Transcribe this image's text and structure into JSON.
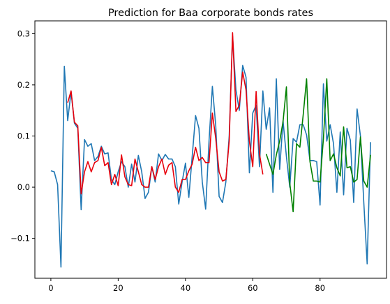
{
  "chart_data": {
    "type": "line",
    "title": "Prediction for Baa corporate bonds rates",
    "xlabel": "",
    "ylabel": "",
    "xlim": [
      -4.75,
      99.75
    ],
    "ylim": [
      -0.178,
      0.325
    ],
    "xticks": [
      0,
      20,
      40,
      60,
      80
    ],
    "yticks": [
      -0.1,
      0.0,
      0.1,
      0.2,
      0.3
    ],
    "ytick_labels": [
      "−0.1",
      "0.0",
      "0.1",
      "0.2",
      "0.3"
    ],
    "grid": false,
    "legend": null,
    "series": [
      {
        "color": "#1f77b4",
        "x": [
          0,
          1,
          2,
          3,
          4,
          5,
          6,
          7,
          8,
          9,
          10,
          11,
          12,
          13,
          14,
          15,
          16,
          17,
          18,
          19,
          20,
          21,
          22,
          23,
          24,
          25,
          26,
          27,
          28,
          29,
          30,
          31,
          32,
          33,
          34,
          35,
          36,
          37,
          38,
          39,
          40,
          41,
          42,
          43,
          44,
          45,
          46,
          47,
          48,
          49,
          50,
          51,
          52,
          53,
          54,
          55,
          56,
          57,
          58,
          59,
          60,
          61,
          62,
          63,
          64,
          65,
          66,
          67,
          68,
          69,
          70,
          71,
          72,
          73,
          74,
          75,
          76,
          77,
          78,
          79,
          80,
          81,
          82,
          83,
          84,
          85,
          86,
          87,
          88,
          89,
          90,
          91,
          92,
          93,
          94,
          95
        ],
        "y": [
          0.032,
          0.03,
          0.005,
          -0.156,
          0.236,
          0.13,
          0.187,
          0.125,
          0.115,
          -0.044,
          0.093,
          0.08,
          0.085,
          0.052,
          0.06,
          0.08,
          0.065,
          0.067,
          0.015,
          0.005,
          0.03,
          0.05,
          0.04,
          0.0,
          0.045,
          0.01,
          0.062,
          0.03,
          -0.022,
          -0.01,
          0.04,
          0.01,
          0.065,
          0.052,
          0.064,
          0.055,
          0.055,
          0.04,
          -0.033,
          0.01,
          0.047,
          -0.02,
          0.06,
          0.14,
          0.115,
          0.01,
          -0.043,
          0.09,
          0.197,
          0.12,
          -0.018,
          -0.03,
          0.01,
          0.1,
          0.295,
          0.19,
          0.15,
          0.238,
          0.215,
          0.028,
          0.145,
          0.16,
          0.04,
          0.188,
          0.113,
          0.155,
          -0.01,
          0.212,
          0.035,
          0.13,
          0.06,
          0.0,
          0.095,
          0.088,
          0.122,
          0.122,
          0.102,
          0.052,
          0.052,
          0.05,
          -0.035,
          0.202,
          0.09,
          0.122,
          0.085,
          -0.01,
          0.108,
          -0.015,
          0.115,
          0.092,
          -0.03,
          0.153,
          0.1,
          -0.03,
          -0.15,
          0.088
        ]
      },
      {
        "color": "#e8000b",
        "x": [
          5,
          6,
          7,
          8,
          9,
          10,
          11,
          12,
          13,
          14,
          15,
          16,
          17,
          18,
          19,
          20,
          21,
          22,
          23,
          24,
          25,
          26,
          27,
          28,
          29,
          30,
          31,
          32,
          33,
          34,
          35,
          36,
          37,
          38,
          39,
          40,
          41,
          42,
          43,
          44,
          45,
          46,
          47,
          48,
          49,
          50,
          51,
          52,
          53,
          54,
          55,
          56,
          57,
          58,
          59,
          60,
          61,
          62,
          63
        ],
        "y": [
          0.165,
          0.188,
          0.127,
          0.12,
          -0.013,
          0.03,
          0.05,
          0.03,
          0.048,
          0.052,
          0.078,
          0.042,
          0.048,
          0.005,
          0.025,
          0.003,
          0.063,
          0.02,
          0.005,
          0.003,
          0.055,
          0.03,
          0.005,
          0.0,
          0.0,
          0.04,
          0.015,
          0.04,
          0.055,
          0.025,
          0.043,
          0.048,
          0.0,
          -0.01,
          0.015,
          0.015,
          0.032,
          0.045,
          0.078,
          0.052,
          0.058,
          0.048,
          0.048,
          0.145,
          0.095,
          0.03,
          0.012,
          0.015,
          0.09,
          0.302,
          0.148,
          0.16,
          0.225,
          0.19,
          0.09,
          0.04,
          0.187,
          0.065,
          0.025
        ]
      },
      {
        "color": "#008000",
        "x": [
          64,
          65,
          66,
          67,
          68,
          69,
          70,
          71,
          72,
          73,
          74,
          75,
          76,
          77,
          78,
          79,
          80,
          81,
          82,
          83,
          84,
          85,
          86,
          87,
          88,
          89,
          90,
          91,
          92,
          93,
          94,
          95
        ],
        "y": [
          0.065,
          0.045,
          0.025,
          0.063,
          0.09,
          0.128,
          0.196,
          0.008,
          -0.048,
          0.085,
          0.078,
          0.142,
          0.212,
          0.05,
          0.012,
          0.012,
          0.01,
          0.095,
          0.212,
          0.052,
          0.065,
          0.038,
          0.022,
          0.118,
          0.038,
          0.04,
          0.01,
          0.015,
          0.098,
          0.012,
          0.0,
          0.063
        ]
      }
    ]
  }
}
